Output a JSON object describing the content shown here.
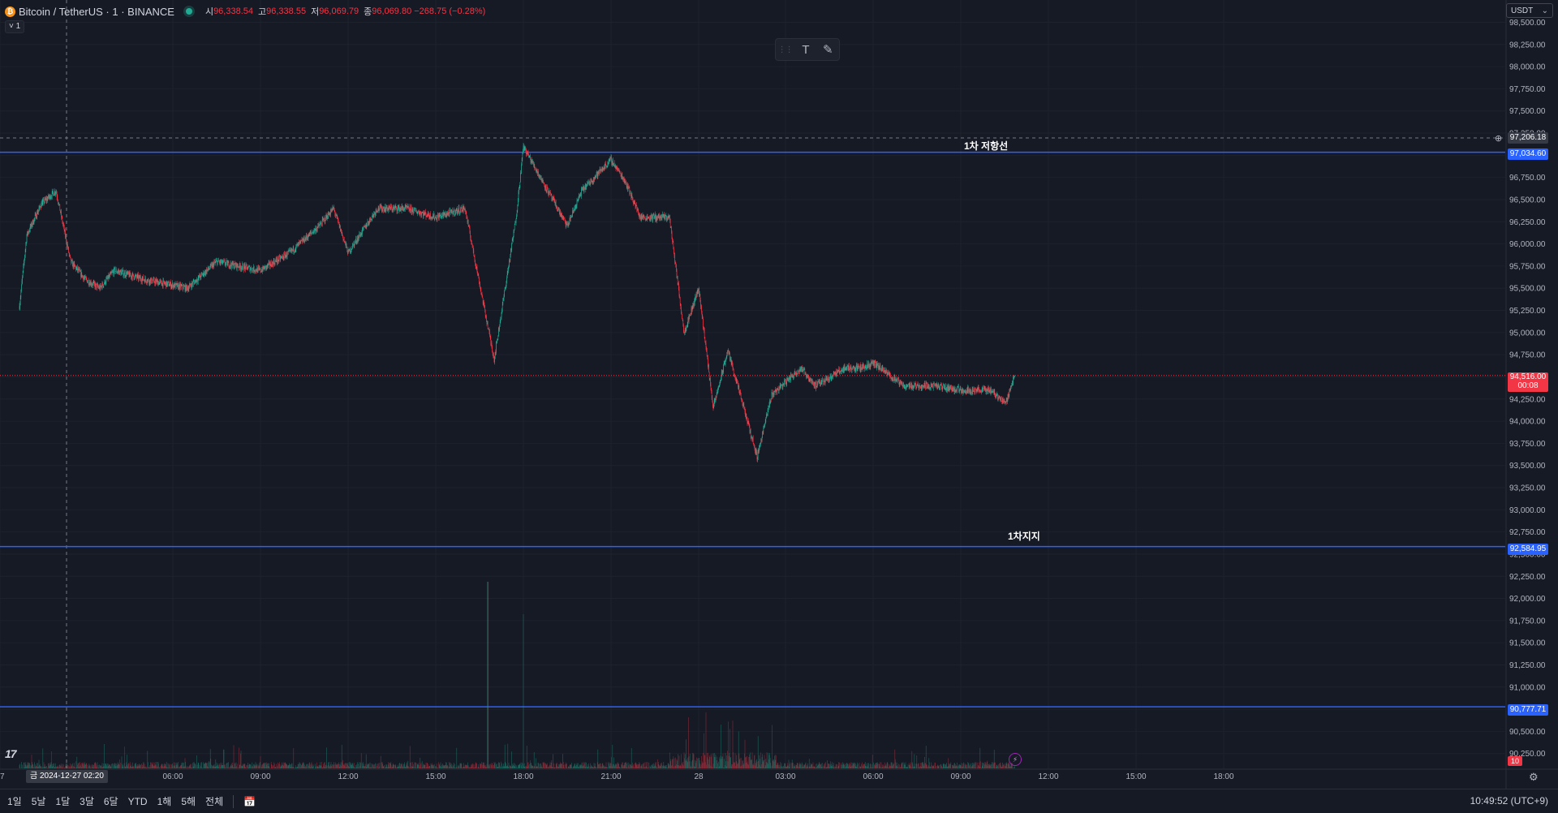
{
  "header": {
    "symbol": "Bitcoin / TetherUS · 1 · BINANCE",
    "ohlc": [
      {
        "label": "시",
        "value": "96,338.54"
      },
      {
        "label": "고",
        "value": "96,338.55"
      },
      {
        "label": "저",
        "value": "96,069.79"
      },
      {
        "label": "종",
        "value": "96,069.80 −268.75 (−0.28%)"
      }
    ],
    "interval_toggle": "˅ 1"
  },
  "currency": "USDT",
  "price_axis": {
    "ticks": [
      "98,500.00",
      "98,250.00",
      "98,000.00",
      "97,750.00",
      "97,500.00",
      "97,250.00",
      "97,000.00",
      "96,750.00",
      "96,500.00",
      "96,250.00",
      "96,000.00",
      "95,750.00",
      "95,500.00",
      "95,250.00",
      "95,000.00",
      "94,750.00",
      "94,500.00",
      "94,250.00",
      "94,000.00",
      "93,750.00",
      "93,500.00",
      "93,250.00",
      "93,000.00",
      "92,750.00",
      "92,500.00",
      "92,250.00",
      "92,000.00",
      "91,750.00",
      "91,500.00",
      "91,250.00",
      "91,000.00",
      "90,750.00",
      "90,500.00",
      "90,250.00"
    ],
    "crosshair_price": "97,206.18",
    "last_price": "94,516.00",
    "countdown": "00:08",
    "volume_label": "10"
  },
  "time_axis": {
    "labels": [
      {
        "t": "7",
        "x": 0
      },
      {
        "t": "06:00",
        "x": 213
      },
      {
        "t": "09:00",
        "x": 321
      },
      {
        "t": "12:00",
        "x": 429
      },
      {
        "t": "15:00",
        "x": 537
      },
      {
        "t": "18:00",
        "x": 645
      },
      {
        "t": "21:00",
        "x": 753
      },
      {
        "t": "28",
        "x": 861
      },
      {
        "t": "03:00",
        "x": 968
      },
      {
        "t": "06:00",
        "x": 1076
      },
      {
        "t": "09:00",
        "x": 1184
      },
      {
        "t": "12:00",
        "x": 1292
      },
      {
        "t": "15:00",
        "x": 1400
      },
      {
        "t": "18:00",
        "x": 1508
      }
    ],
    "crosshair_date": "금 2024-12-27   02:20"
  },
  "horizontal_lines": [
    {
      "name": "1차 저항선",
      "price": "97,034.60",
      "color": "#2962ff"
    },
    {
      "name": "1차지지",
      "price": "92,584.95",
      "color": "#2962ff"
    },
    {
      "name": "",
      "price": "90,777.71",
      "color": "#2962ff"
    }
  ],
  "bottom_bar": {
    "ranges": [
      "1일",
      "5날",
      "1달",
      "3달",
      "6달",
      "YTD",
      "1해",
      "5해",
      "전체"
    ],
    "clock": "10:49:52 (UTC+9)"
  },
  "toolbar": {
    "text_tool": "T",
    "brush_tool": "✎"
  },
  "chart_data": {
    "type": "candlestick",
    "symbol": "BTCUSDT",
    "interval": "1m",
    "ylim": [
      90125,
      98550
    ],
    "x_range": [
      "2024-12-27 00:40",
      "2024-12-28 20:10"
    ],
    "keypoints": [
      [
        "00:45",
        95300
      ],
      [
        "01:00",
        96100
      ],
      [
        "01:30",
        96450
      ],
      [
        "02:00",
        96600
      ],
      [
        "02:30",
        95800
      ],
      [
        "03:00",
        95600
      ],
      [
        "03:30",
        95500
      ],
      [
        "04:00",
        95700
      ],
      [
        "05:00",
        95600
      ],
      [
        "06:30",
        95500
      ],
      [
        "07:30",
        95800
      ],
      [
        "09:00",
        95700
      ],
      [
        "10:00",
        95900
      ],
      [
        "11:00",
        96200
      ],
      [
        "11:30",
        96400
      ],
      [
        "12:00",
        95900
      ],
      [
        "13:00",
        96400
      ],
      [
        "14:00",
        96400
      ],
      [
        "15:00",
        96300
      ],
      [
        "16:00",
        96400
      ],
      [
        "17:00",
        94700
      ],
      [
        "17:45",
        96300
      ],
      [
        "18:00",
        97100
      ],
      [
        "18:30",
        96800
      ],
      [
        "19:30",
        96200
      ],
      [
        "20:00",
        96600
      ],
      [
        "21:00",
        96950
      ],
      [
        "21:30",
        96700
      ],
      [
        "22:00",
        96300
      ],
      [
        "23:00",
        96300
      ],
      [
        "23:30",
        95000
      ],
      [
        "00:00",
        95500
      ],
      [
        "00:30",
        94150
      ],
      [
        "01:00",
        94800
      ],
      [
        "01:30",
        94200
      ],
      [
        "02:00",
        93600
      ],
      [
        "02:30",
        94300
      ],
      [
        "03:30",
        94600
      ],
      [
        "04:00",
        94400
      ],
      [
        "05:00",
        94600
      ],
      [
        "05:30",
        94600
      ],
      [
        "06:00",
        94650
      ],
      [
        "07:00",
        94400
      ],
      [
        "08:00",
        94400
      ],
      [
        "09:00",
        94350
      ],
      [
        "10:00",
        94350
      ],
      [
        "10:30",
        94200
      ],
      [
        "10:49",
        94516
      ]
    ],
    "annotations": [
      {
        "text": "1차 저항선",
        "price": 97034.6
      },
      {
        "text": "1차지지",
        "price": 92584.95
      },
      {
        "text": "",
        "price": 90777.71
      }
    ]
  }
}
